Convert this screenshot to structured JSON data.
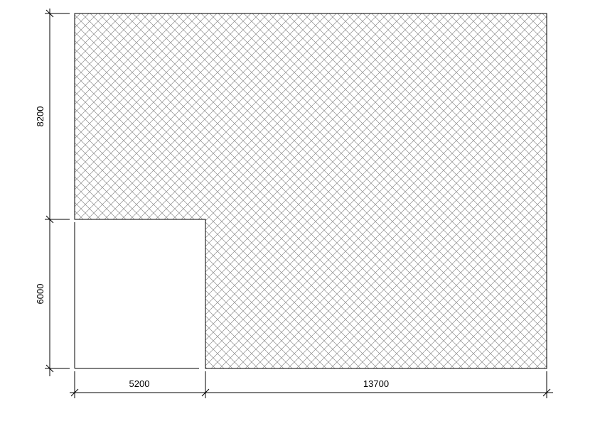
{
  "drawing": {
    "dimensions": {
      "top_height": "8200",
      "bottom_height": "6000",
      "left_width": "5200",
      "right_width": "13700"
    },
    "hatch_pattern": "cross-hatch",
    "colors": {
      "line": "#000000",
      "hatch": "#8c8c8c",
      "background": "#ffffff"
    }
  }
}
